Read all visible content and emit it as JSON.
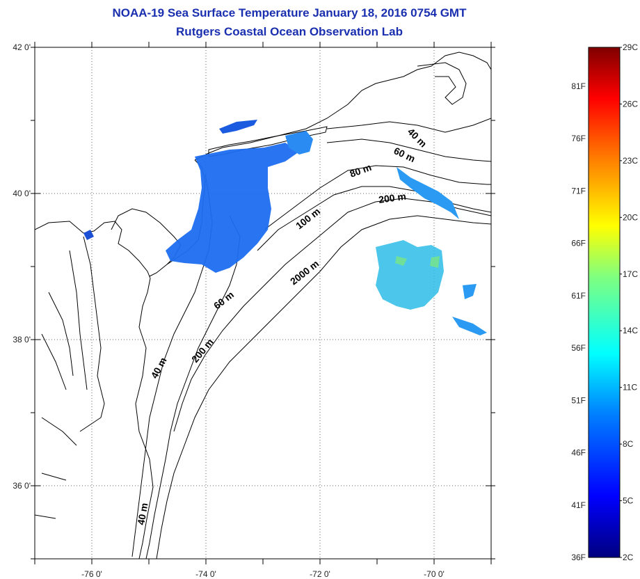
{
  "title": "NOAA-19 Sea Surface Temperature January 18, 2016 0754 GMT",
  "subtitle": "Rutgers Coastal Ocean Observation Lab",
  "map": {
    "lat_range": [
      35,
      42
    ],
    "lon_range": [
      -77,
      -69
    ],
    "lat_ticks": [
      {
        "value": 42,
        "label": "42 0'"
      },
      {
        "value": 40,
        "label": "40 0'"
      },
      {
        "value": 38,
        "label": "38 0'"
      },
      {
        "value": 36,
        "label": "36 0'"
      }
    ],
    "lon_ticks": [
      {
        "value": -76,
        "label": "-76 0'"
      },
      {
        "value": -74,
        "label": "-74 0'"
      },
      {
        "value": -72,
        "label": "-72 0'"
      },
      {
        "value": -70,
        "label": "-70 0'"
      }
    ],
    "grid": "dotted",
    "contour_labels": [
      {
        "text": "40 m"
      },
      {
        "text": "60 m"
      },
      {
        "text": "80 m"
      },
      {
        "text": "200 m"
      },
      {
        "text": "100 m"
      },
      {
        "text": "2000 m"
      },
      {
        "text": "60 m"
      },
      {
        "text": "200 m"
      },
      {
        "text": "40 m"
      },
      {
        "text": "40 m"
      }
    ]
  },
  "colorbar": {
    "range_c": [
      2,
      29
    ],
    "labels_c": [
      "29C",
      "26C",
      "23C",
      "20C",
      "17C",
      "14C",
      "11C",
      "8C",
      "5C",
      "2C"
    ],
    "labels_f": [
      "81F",
      "76F",
      "71F",
      "66F",
      "61F",
      "56F",
      "51F",
      "46F",
      "41F",
      "36F"
    ],
    "colors": [
      "#00007f",
      "#0000ff",
      "#007fff",
      "#00ffff",
      "#7fff7f",
      "#ffff00",
      "#ff7f00",
      "#ff0000",
      "#7f0000"
    ]
  }
}
